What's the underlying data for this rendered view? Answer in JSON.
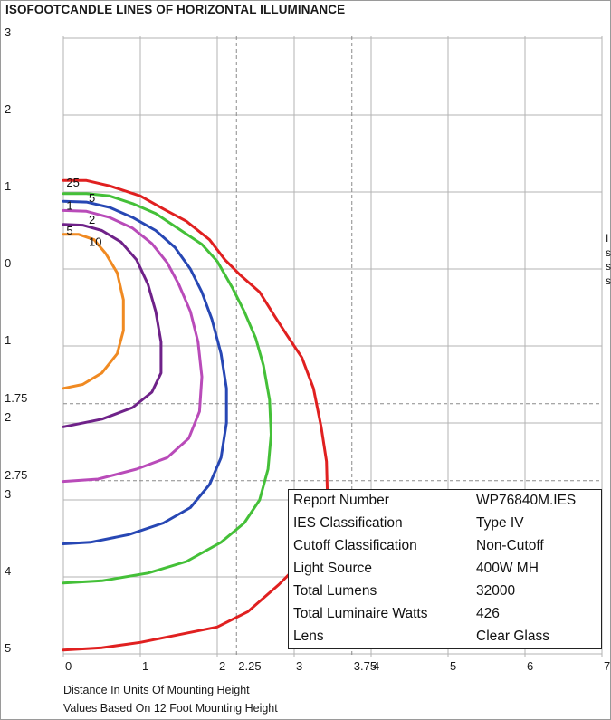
{
  "page": {
    "title": "ISOFOOTCANDLE LINES OF HORIZONTAL ILLUMINANCE",
    "footer_line1": "Distance In Units Of Mounting Height",
    "footer_line2": "Values Based On 12 Foot Mounting Height",
    "side_text": [
      "I",
      "s",
      "s",
      "s"
    ]
  },
  "info_table": {
    "rows": [
      {
        "label": "Report Number",
        "value": "WP76840M.IES"
      },
      {
        "label": "IES Classification",
        "value": "Type IV"
      },
      {
        "label": "Cutoff Classification",
        "value": "Non-Cutoff"
      },
      {
        "label": "Light Source",
        "value": "400W MH"
      },
      {
        "label": "Total Lumens",
        "value": "32000"
      },
      {
        "label": "Total Luminaire Watts",
        "value": "426"
      },
      {
        "label": "Lens",
        "value": "Clear Glass"
      }
    ]
  },
  "chart_data": {
    "type": "line",
    "title": "ISOFOOTCANDLE LINES OF HORIZONTAL ILLUMINANCE",
    "xlabel": "Distance In Units Of Mounting Height",
    "ylabel": "",
    "xlim": [
      0,
      7
    ],
    "ylim": [
      3,
      -5
    ],
    "x_ticks": [
      {
        "value": 0,
        "label": "0"
      },
      {
        "value": 1,
        "label": "1"
      },
      {
        "value": 2,
        "label": "2"
      },
      {
        "value": 2.25,
        "label": "2.25"
      },
      {
        "value": 3,
        "label": "3"
      },
      {
        "value": 3.75,
        "label": "3.75"
      },
      {
        "value": 4,
        "label": "4"
      },
      {
        "value": 5,
        "label": "5"
      },
      {
        "value": 6,
        "label": "6"
      },
      {
        "value": 7,
        "label": "7"
      }
    ],
    "y_ticks": [
      {
        "value": 3,
        "label": "3"
      },
      {
        "value": 2,
        "label": "2"
      },
      {
        "value": 1,
        "label": "1"
      },
      {
        "value": 0,
        "label": "0"
      },
      {
        "value": -1,
        "label": "1"
      },
      {
        "value": -1.75,
        "label": "1.75"
      },
      {
        "value": -2,
        "label": "2"
      },
      {
        "value": -2.75,
        "label": "2.75"
      },
      {
        "value": -3,
        "label": "3"
      },
      {
        "value": -4,
        "label": "4"
      },
      {
        "value": -5,
        "label": "5"
      }
    ],
    "dashed_guides": {
      "x": [
        2.25,
        3.75
      ],
      "y": [
        -1.75,
        -2.75
      ]
    },
    "grid": true,
    "series": [
      {
        "name": "25",
        "color": "#e02020",
        "label_at": [
          0.04,
          1.07
        ],
        "points": [
          [
            0,
            1.15
          ],
          [
            0.3,
            1.15
          ],
          [
            0.6,
            1.08
          ],
          [
            1.0,
            0.95
          ],
          [
            1.3,
            0.78
          ],
          [
            1.6,
            0.62
          ],
          [
            1.9,
            0.38
          ],
          [
            2.1,
            0.12
          ],
          [
            2.3,
            -0.08
          ],
          [
            2.55,
            -0.3
          ],
          [
            2.75,
            -0.62
          ],
          [
            2.9,
            -0.85
          ],
          [
            3.1,
            -1.15
          ],
          [
            3.25,
            -1.55
          ],
          [
            3.35,
            -2.05
          ],
          [
            3.42,
            -2.5
          ],
          [
            3.43,
            -2.9
          ],
          [
            3.4,
            -3.25
          ],
          [
            3.3,
            -3.55
          ],
          [
            3.1,
            -3.8
          ],
          [
            2.8,
            -4.1
          ],
          [
            2.4,
            -4.45
          ],
          [
            2.0,
            -4.65
          ],
          [
            1.5,
            -4.75
          ],
          [
            1.0,
            -4.85
          ],
          [
            0.5,
            -4.92
          ],
          [
            0,
            -4.95
          ]
        ]
      },
      {
        "name": "5",
        "color": "#44c038",
        "label_at": [
          0.33,
          0.87
        ],
        "points": [
          [
            0,
            0.98
          ],
          [
            0.3,
            0.98
          ],
          [
            0.6,
            0.95
          ],
          [
            0.9,
            0.85
          ],
          [
            1.2,
            0.72
          ],
          [
            1.5,
            0.52
          ],
          [
            1.8,
            0.32
          ],
          [
            2.0,
            0.1
          ],
          [
            2.2,
            -0.25
          ],
          [
            2.35,
            -0.55
          ],
          [
            2.5,
            -0.9
          ],
          [
            2.6,
            -1.25
          ],
          [
            2.68,
            -1.7
          ],
          [
            2.7,
            -2.15
          ],
          [
            2.66,
            -2.6
          ],
          [
            2.55,
            -3.0
          ],
          [
            2.35,
            -3.3
          ],
          [
            2.05,
            -3.55
          ],
          [
            1.6,
            -3.8
          ],
          [
            1.1,
            -3.95
          ],
          [
            0.5,
            -4.05
          ],
          [
            0,
            -4.08
          ]
        ]
      },
      {
        "name": "1",
        "color": "#2747b4",
        "label_at": [
          0.04,
          0.77
        ],
        "points": [
          [
            0,
            0.88
          ],
          [
            0.3,
            0.87
          ],
          [
            0.6,
            0.8
          ],
          [
            0.9,
            0.67
          ],
          [
            1.2,
            0.5
          ],
          [
            1.45,
            0.28
          ],
          [
            1.65,
            0.0
          ],
          [
            1.8,
            -0.3
          ],
          [
            1.93,
            -0.65
          ],
          [
            2.05,
            -1.1
          ],
          [
            2.12,
            -1.55
          ],
          [
            2.12,
            -2.0
          ],
          [
            2.05,
            -2.45
          ],
          [
            1.9,
            -2.8
          ],
          [
            1.65,
            -3.1
          ],
          [
            1.3,
            -3.3
          ],
          [
            0.85,
            -3.45
          ],
          [
            0.35,
            -3.55
          ],
          [
            0,
            -3.57
          ]
        ]
      },
      {
        "name": "2",
        "color": "#b94bb9",
        "label_at": [
          0.33,
          0.59
        ],
        "points": [
          [
            0,
            0.76
          ],
          [
            0.3,
            0.75
          ],
          [
            0.6,
            0.67
          ],
          [
            0.9,
            0.53
          ],
          [
            1.15,
            0.33
          ],
          [
            1.35,
            0.08
          ],
          [
            1.5,
            -0.2
          ],
          [
            1.65,
            -0.55
          ],
          [
            1.75,
            -0.95
          ],
          [
            1.8,
            -1.4
          ],
          [
            1.77,
            -1.85
          ],
          [
            1.63,
            -2.2
          ],
          [
            1.35,
            -2.45
          ],
          [
            0.95,
            -2.6
          ],
          [
            0.45,
            -2.73
          ],
          [
            0,
            -2.76
          ]
        ]
      },
      {
        "name": "5",
        "color": "#6f2289",
        "label_at": [
          0.04,
          0.45
        ],
        "points": [
          [
            0,
            0.58
          ],
          [
            0.25,
            0.57
          ],
          [
            0.5,
            0.5
          ],
          [
            0.75,
            0.35
          ],
          [
            0.95,
            0.12
          ],
          [
            1.1,
            -0.2
          ],
          [
            1.2,
            -0.55
          ],
          [
            1.27,
            -0.95
          ],
          [
            1.27,
            -1.35
          ],
          [
            1.15,
            -1.6
          ],
          [
            0.9,
            -1.8
          ],
          [
            0.5,
            -1.95
          ],
          [
            0,
            -2.05
          ]
        ]
      },
      {
        "name": "10",
        "color": "#f08a22",
        "label_at": [
          0.33,
          0.3
        ],
        "points": [
          [
            0,
            0.45
          ],
          [
            0.2,
            0.45
          ],
          [
            0.4,
            0.38
          ],
          [
            0.55,
            0.2
          ],
          [
            0.7,
            -0.05
          ],
          [
            0.78,
            -0.4
          ],
          [
            0.78,
            -0.8
          ],
          [
            0.7,
            -1.1
          ],
          [
            0.5,
            -1.35
          ],
          [
            0.25,
            -1.5
          ],
          [
            0,
            -1.55
          ]
        ]
      }
    ]
  }
}
